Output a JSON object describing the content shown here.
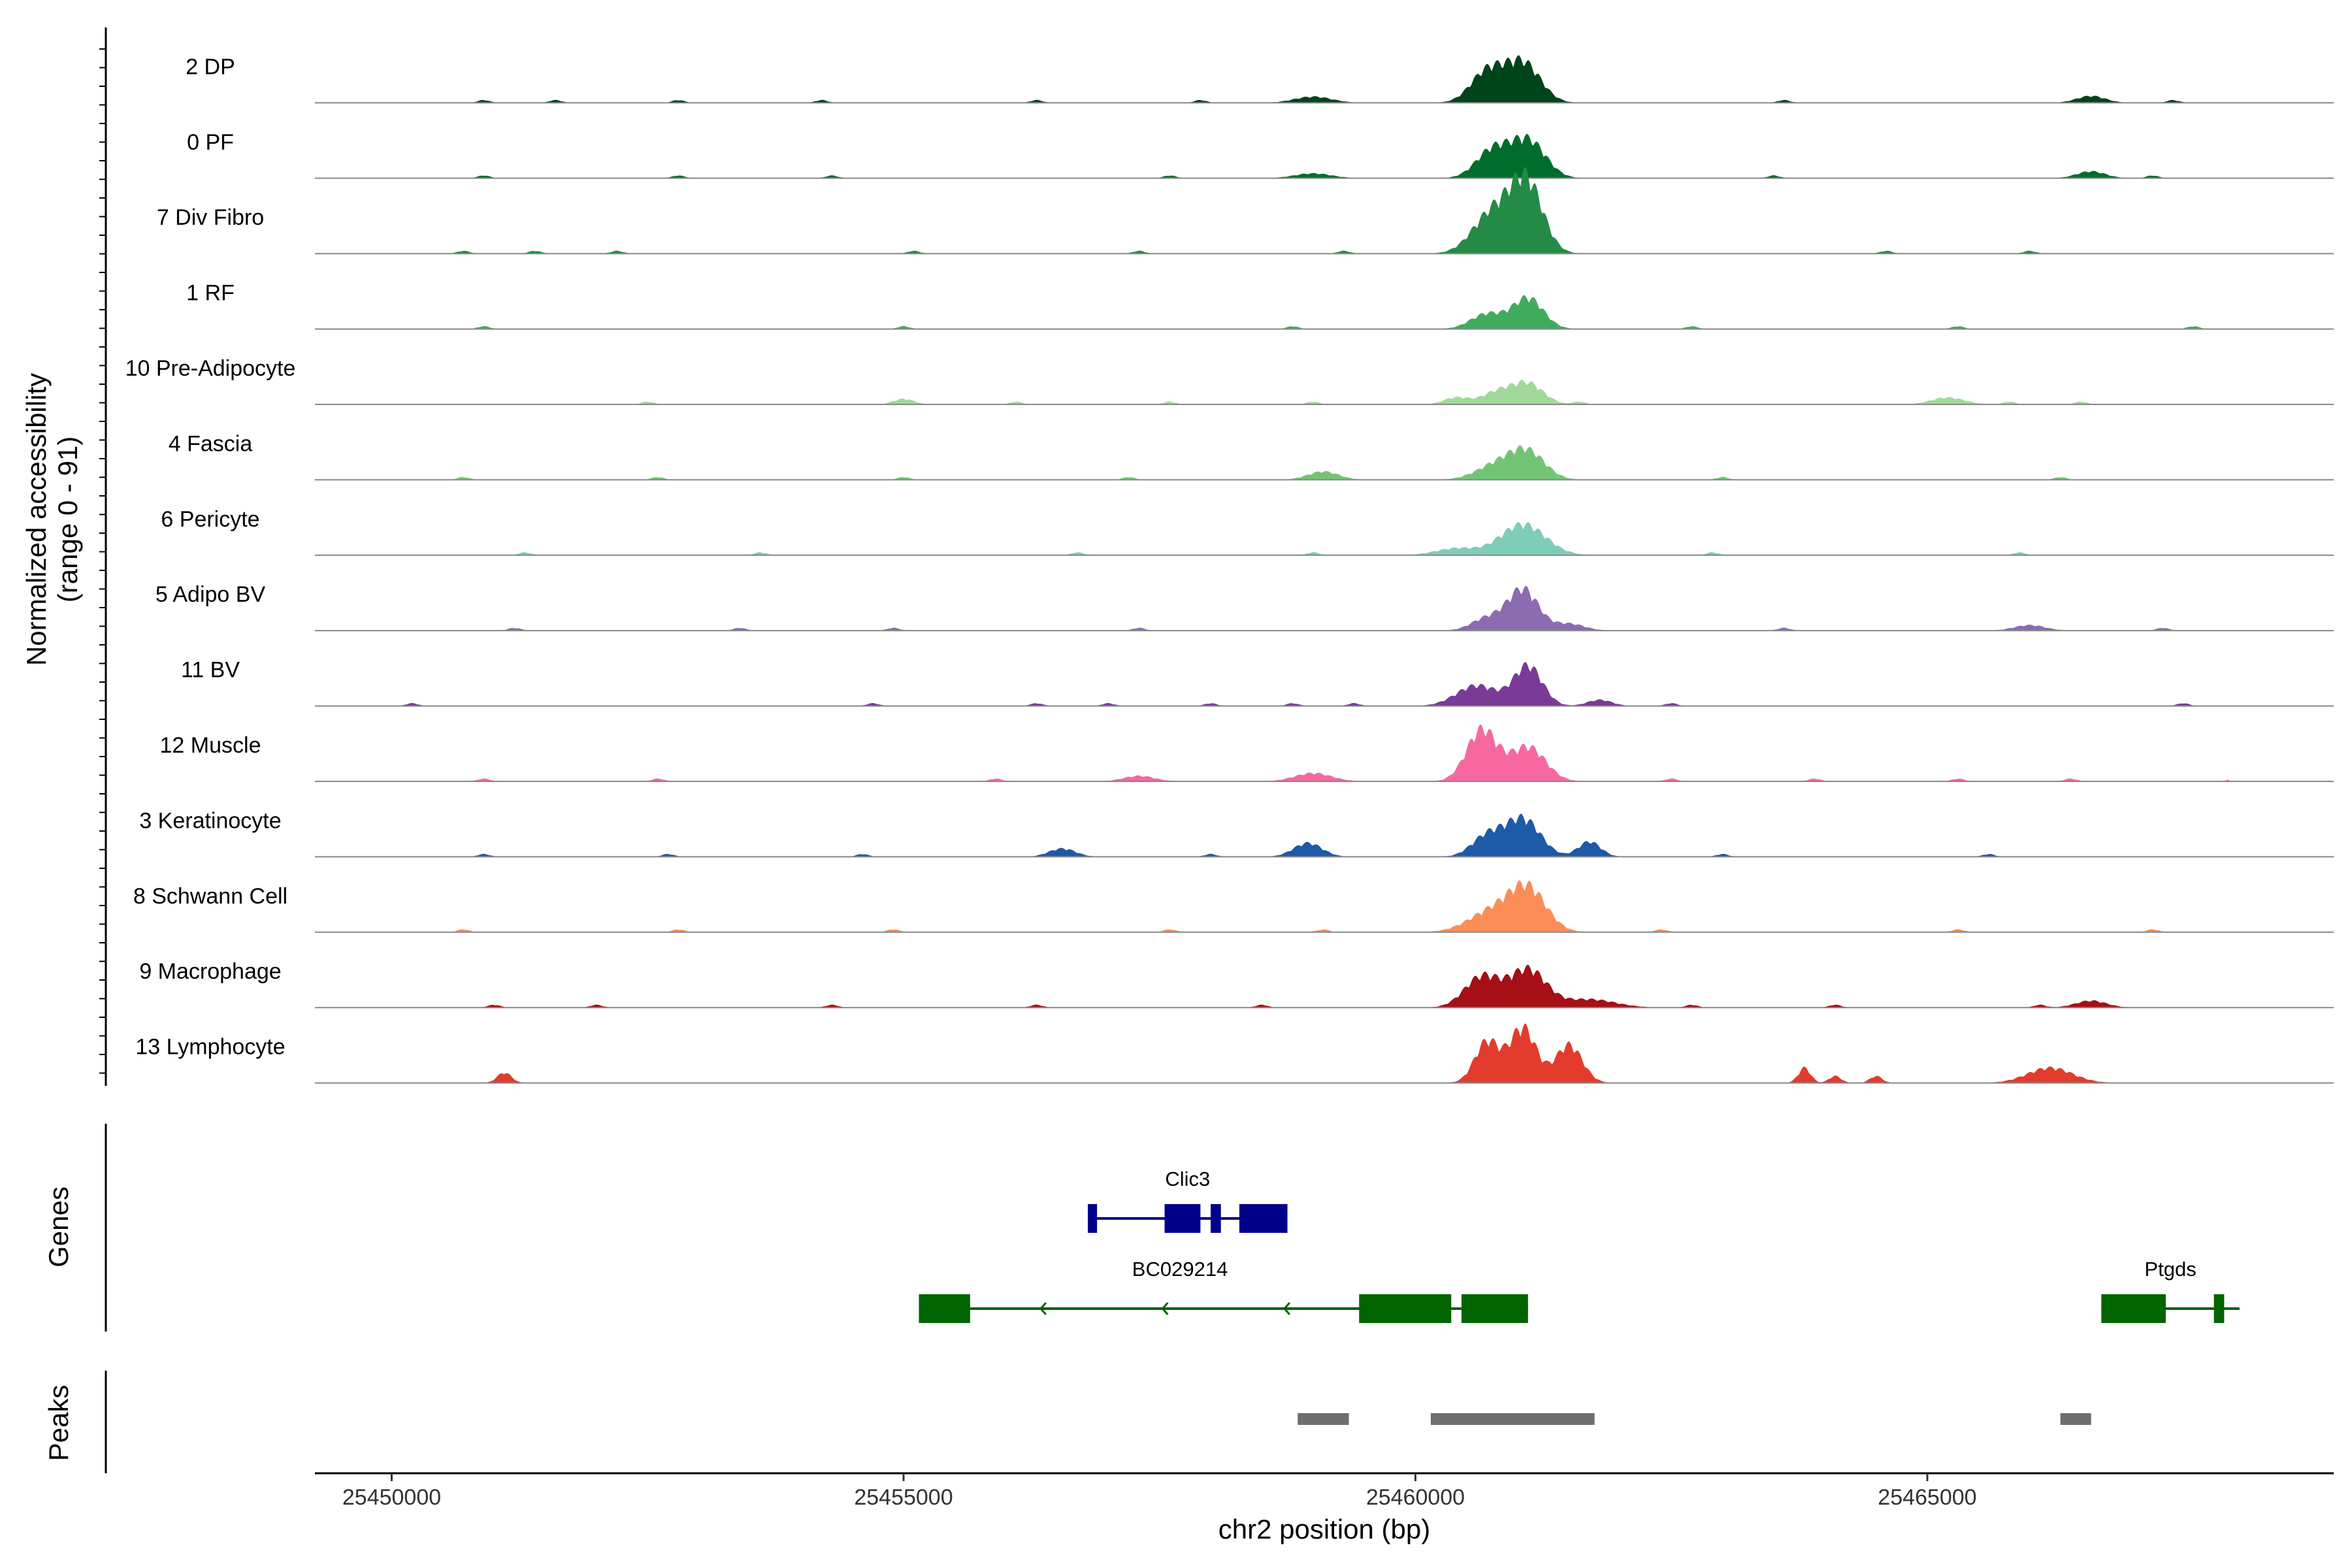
{
  "chart_data": {
    "type": "area",
    "subtype": "genome-coverage-tracks",
    "chromosome": "chr2",
    "xlabel": "chr2 position (bp)",
    "xlim": [
      25449250,
      25468970
    ],
    "xticks": [
      25450000,
      25455000,
      25460000,
      25465000
    ],
    "xtick_labels": [
      "25450000",
      "25455000",
      "25460000",
      "25465000"
    ],
    "ylabel": "Normalized accessibility\n(range 0 - 91)",
    "ylabel_lines": [
      "Normalized accessibility",
      "(range 0 - 91)"
    ],
    "ylim": [
      0,
      91
    ],
    "tracks": [
      {
        "name": "2 DP",
        "color": "#00441b",
        "peaks": [
          [
            25460700,
            45,
            160
          ],
          [
            25461050,
            58,
            170
          ],
          [
            25459000,
            9,
            180
          ],
          [
            25466600,
            10,
            140
          ]
        ],
        "bumps": [
          25450900,
          25451600,
          25452800,
          25454200,
          25456300,
          25457900,
          25463600,
          25467400
        ]
      },
      {
        "name": "0 PF",
        "color": "#006d2c",
        "peaks": [
          [
            25460750,
            40,
            160
          ],
          [
            25461100,
            55,
            170
          ],
          [
            25459000,
            7,
            180
          ],
          [
            25466600,
            10,
            140
          ]
        ],
        "bumps": [
          25450900,
          25452800,
          25454300,
          25457600,
          25463500,
          25467200
        ]
      },
      {
        "name": "7 Div Fibro",
        "color": "#238b45",
        "peaks": [
          [
            25460700,
            30,
            180
          ],
          [
            25461100,
            80,
            150
          ],
          [
            25460900,
            45,
            220
          ]
        ],
        "bumps": [
          25450700,
          25451400,
          25452200,
          25455100,
          25457300,
          25459300,
          25464600,
          25466000
        ]
      },
      {
        "name": "1 RF",
        "color": "#41ab5d",
        "peaks": [
          [
            25460700,
            22,
            160
          ],
          [
            25461100,
            45,
            150
          ]
        ],
        "bumps": [
          25450900,
          25455000,
          25458800,
          25462700,
          25465300,
          25467600
        ]
      },
      {
        "name": "10 Pre-Adipocyte",
        "color": "#a1d99b",
        "peaks": [
          [
            25460800,
            18,
            150
          ],
          [
            25461100,
            30,
            150
          ],
          [
            25460400,
            10,
            120
          ],
          [
            25455000,
            8,
            100
          ],
          [
            25465200,
            10,
            160
          ]
        ],
        "bumps": [
          25452500,
          25456100,
          25457600,
          25459000,
          25461600,
          25465800,
          25466500
        ]
      },
      {
        "name": "4 Fascia",
        "color": "#74c476",
        "peaks": [
          [
            25460800,
            22,
            200
          ],
          [
            25461100,
            38,
            170
          ],
          [
            25459100,
            12,
            150
          ]
        ],
        "bumps": [
          25450700,
          25452600,
          25455000,
          25457200,
          25463000,
          25466300
        ]
      },
      {
        "name": "6 Pericyte",
        "color": "#7fccb8",
        "peaks": [
          [
            25460400,
            10,
            200
          ],
          [
            25461050,
            45,
            220
          ]
        ],
        "bumps": [
          25451300,
          25453600,
          25456700,
          25459000,
          25462900,
          25465900
        ]
      },
      {
        "name": "5 Adipo BV",
        "color": "#8c6bb1",
        "peaks": [
          [
            25460700,
            18,
            150
          ],
          [
            25461050,
            60,
            150
          ],
          [
            25461500,
            10,
            150
          ],
          [
            25466000,
            8,
            150
          ]
        ],
        "bumps": [
          25451200,
          25453400,
          25454900,
          25457300,
          25463600,
          25467300
        ]
      },
      {
        "name": "11 BV",
        "color": "#7a3a96",
        "peaks": [
          [
            25460600,
            30,
            200
          ],
          [
            25461100,
            58,
            140
          ],
          [
            25461800,
            9,
            120
          ]
        ],
        "bumps": [
          25450200,
          25454700,
          25456300,
          25457000,
          25458000,
          25458800,
          25459400,
          25462500,
          25467500
        ]
      },
      {
        "name": "12 Muscle",
        "color": "#f768a1",
        "peaks": [
          [
            25460650,
            75,
            150
          ],
          [
            25461100,
            50,
            170
          ],
          [
            25459000,
            12,
            180
          ],
          [
            25457300,
            8,
            150
          ]
        ],
        "bumps": [
          25450900,
          25452600,
          25455900,
          25462500,
          25463900,
          25465300,
          25466400,
          25468000
        ]
      },
      {
        "name": "3 Keratinocyte",
        "color": "#1d5aa7",
        "peaks": [
          [
            25460700,
            30,
            150
          ],
          [
            25461050,
            55,
            170
          ],
          [
            25461700,
            22,
            110
          ],
          [
            25458950,
            20,
            140
          ],
          [
            25456550,
            12,
            130
          ]
        ],
        "bumps": [
          25450900,
          25452700,
          25454600,
          25458000,
          25463000,
          25465600
        ]
      },
      {
        "name": "8 Schwann Cell",
        "color": "#fc8d59",
        "peaks": [
          [
            25460750,
            30,
            230
          ],
          [
            25461100,
            60,
            180
          ]
        ],
        "bumps": [
          25450700,
          25452800,
          25454900,
          25457600,
          25459100,
          25462400,
          25465300,
          25467200
        ]
      },
      {
        "name": "9 Macrophage",
        "color": "#a50f15",
        "peaks": [
          [
            25460650,
            45,
            170
          ],
          [
            25461100,
            55,
            180
          ],
          [
            25461700,
            12,
            250
          ],
          [
            25466600,
            10,
            150
          ]
        ],
        "bumps": [
          25451000,
          25452000,
          25454300,
          25456300,
          25458500,
          25462700,
          25464100,
          25466100
        ]
      },
      {
        "name": "13 Lymphocyte",
        "color": "#e33b2d",
        "peaks": [
          [
            25460700,
            60,
            120
          ],
          [
            25461050,
            80,
            130
          ],
          [
            25461500,
            55,
            130
          ],
          [
            25451100,
            15,
            70
          ],
          [
            25463800,
            22,
            60
          ],
          [
            25464100,
            10,
            60
          ],
          [
            25464500,
            10,
            60
          ],
          [
            25466200,
            22,
            220
          ]
        ],
        "bumps": []
      }
    ],
    "genes": [
      {
        "name": "Clic3",
        "color": "#00008b",
        "strand": "-",
        "start": 25456800,
        "end": 25458750,
        "exons": [
          [
            25456800,
            25456890
          ],
          [
            25457550,
            25457900
          ],
          [
            25458000,
            25458100
          ],
          [
            25458280,
            25458750
          ]
        ]
      },
      {
        "name": "BC029214",
        "color": "#006400",
        "strand": "-",
        "start": 25455150,
        "end": 25461100,
        "exons": [
          [
            25455150,
            25455650
          ],
          [
            25459450,
            25460350
          ],
          [
            25460450,
            25461100
          ]
        ]
      },
      {
        "name": "Ptgds",
        "color": "#006400",
        "strand": "-",
        "start": 25466700,
        "end": 25468050,
        "exons": [
          [
            25466700,
            25467330
          ],
          [
            25467800,
            25467900
          ]
        ]
      }
    ],
    "peak_regions": [
      [
        25458850,
        25459350
      ],
      [
        25460150,
        25461750
      ],
      [
        25466300,
        25466600
      ]
    ],
    "panel_titles": [
      "Genes",
      "Peaks"
    ]
  }
}
